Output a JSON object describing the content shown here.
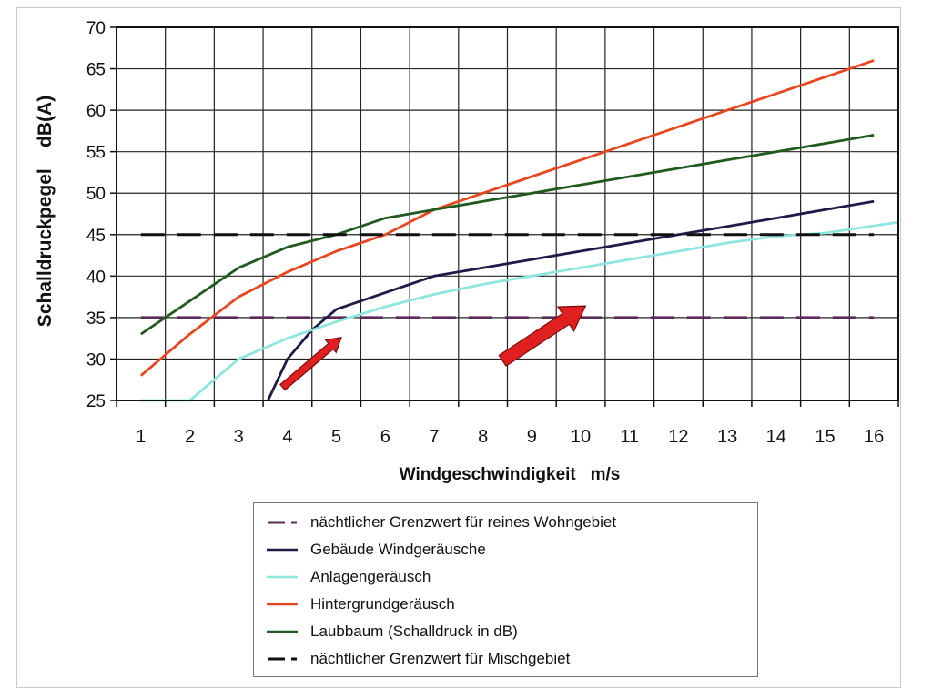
{
  "chart_data": {
    "type": "line",
    "xlabel": "Windgeschwindigkeit   m/s",
    "ylabel": "Schalldruckpegel    dB(A)",
    "xlim": [
      1,
      16
    ],
    "ylim": [
      25,
      70
    ],
    "x_ticks": [
      "1",
      "2",
      "3",
      "4",
      "5",
      "6",
      "7",
      "8",
      "9",
      "10",
      "11",
      "12",
      "13",
      "14",
      "15",
      "16"
    ],
    "y_ticks": [
      "25",
      "30",
      "35",
      "40",
      "45",
      "50",
      "55",
      "60",
      "65",
      "70"
    ],
    "grid": true,
    "legend_position": "bottom",
    "series": [
      {
        "name": "nächtlicher Grenzwert für reines Wohngebiet",
        "color": "#5a2a5a",
        "dash": true,
        "x": [
          1,
          16
        ],
        "y": [
          35,
          35
        ]
      },
      {
        "name": "Gebäude Windgeräusche",
        "color": "#1c1c48",
        "dash": false,
        "x": [
          3.6,
          4,
          4.5,
          5,
          5.5,
          6,
          7,
          8,
          9,
          10,
          11,
          12,
          13,
          14,
          15,
          16
        ],
        "y": [
          25,
          30,
          33.5,
          36,
          37,
          38,
          40,
          41,
          42,
          43,
          44,
          45,
          46,
          47,
          48,
          49
        ]
      },
      {
        "name": "Anlagengeräusch",
        "color": "#8fe6e0",
        "dash": false,
        "x": [
          1,
          2,
          2.5,
          3,
          4,
          5,
          6,
          7,
          8,
          9,
          10,
          11,
          12,
          13,
          14,
          15,
          16.5
        ],
        "y": [
          25,
          25,
          27.5,
          30,
          32.5,
          34.5,
          36.3,
          37.8,
          39,
          40,
          41,
          42,
          43,
          44,
          44.8,
          45.2,
          46.5
        ]
      },
      {
        "name": "Hintergrundgeräusch",
        "color": "#e8461e",
        "dash": false,
        "x": [
          1,
          2,
          3,
          4,
          5,
          6,
          7,
          8,
          9,
          10,
          11,
          12,
          13,
          14,
          15,
          16
        ],
        "y": [
          28,
          33,
          37.5,
          40.5,
          43,
          45,
          48,
          50,
          52,
          54,
          56,
          58,
          60,
          62,
          64,
          66
        ]
      },
      {
        "name": "Laubbaum (Schalldruck in dB)",
        "color": "#1f5a1f",
        "dash": false,
        "x": [
          1,
          2,
          3,
          4,
          5,
          6,
          7,
          8,
          9,
          10,
          11,
          12,
          13,
          14,
          15,
          16
        ],
        "y": [
          33,
          37,
          41,
          43.5,
          45,
          47,
          48,
          49,
          50,
          51,
          52,
          53,
          54,
          55,
          56,
          57
        ]
      },
      {
        "name": "nächtlicher Grenzwert für Mischgebiet",
        "color": "#111111",
        "dash": true,
        "x": [
          1,
          16
        ],
        "y": [
          45,
          45
        ]
      }
    ],
    "annotations": [
      {
        "type": "arrow",
        "color": "#e02020",
        "from": [
          3.9,
          26.6
        ],
        "to": [
          5.1,
          32.6
        ],
        "size": "small"
      },
      {
        "type": "arrow",
        "color": "#e02020",
        "from": [
          8.4,
          29.8
        ],
        "to": [
          10.1,
          36.4
        ],
        "size": "large"
      }
    ]
  }
}
